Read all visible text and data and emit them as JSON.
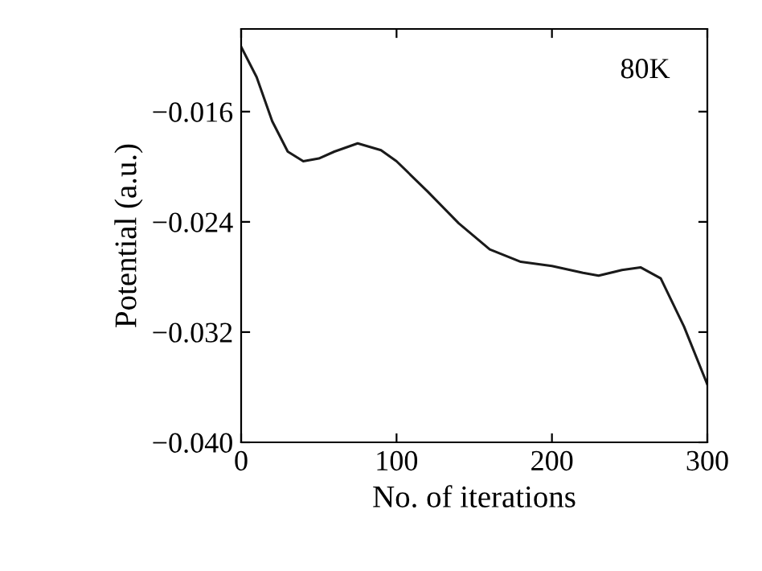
{
  "chart_data": {
    "type": "line",
    "xlabel": "No. of iterations",
    "ylabel": "Potential (a.u.)",
    "annotations": [
      "80K"
    ],
    "x": [
      0,
      10,
      20,
      30,
      40,
      50,
      60,
      75,
      90,
      100,
      120,
      140,
      160,
      180,
      200,
      220,
      230,
      245,
      257,
      270,
      285,
      300
    ],
    "series": [
      {
        "color": "#1a1a1a",
        "values": [
          -0.0113,
          -0.0135,
          -0.0167,
          -0.0189,
          -0.0196,
          -0.0194,
          -0.0189,
          -0.0183,
          -0.0188,
          -0.0196,
          -0.0218,
          -0.0241,
          -0.026,
          -0.0269,
          -0.0272,
          -0.0277,
          -0.0279,
          -0.0275,
          -0.0273,
          -0.0281,
          -0.0316,
          -0.0358
        ]
      }
    ],
    "xlim": [
      0,
      300
    ],
    "xticks": [
      0,
      100,
      200,
      300
    ],
    "ylim": [
      -0.04,
      -0.01
    ],
    "yticks": [
      {
        "value": -0.04,
        "label": "−0.040"
      },
      {
        "value": -0.032,
        "label": "−0.032"
      },
      {
        "value": -0.024,
        "label": "−0.024"
      },
      {
        "value": -0.016,
        "label": "−0.016"
      }
    ],
    "grid": false,
    "legend": false,
    "marker": "none",
    "line_style": "solid"
  }
}
